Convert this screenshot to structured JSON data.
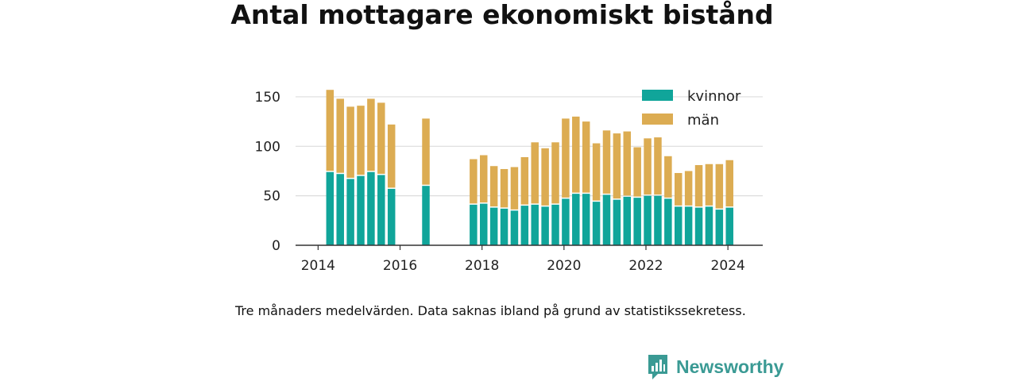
{
  "title": "Antal mottagare ekonomiskt bistånd",
  "caption": "Tre månaders medelvärden. Data saknas ibland på grund av statistikssekretess.",
  "brand": {
    "name": "Newsworthy",
    "color": "#3a9a94",
    "icon": "newsworthy-logo-icon"
  },
  "colors": {
    "kvinnor": "#10a59a",
    "man": "#dcac52",
    "grid": "#dddddd",
    "axis": "#333333"
  },
  "chart_data": {
    "type": "bar",
    "stacked": true,
    "xlabel": "",
    "ylabel": "",
    "xlim": [
      2013.45,
      2024.85
    ],
    "ylim": [
      0,
      170
    ],
    "x_ticks": [
      2014,
      2016,
      2018,
      2020,
      2022,
      2024
    ],
    "y_ticks": [
      0,
      50,
      100,
      150
    ],
    "grid": true,
    "legend": {
      "position": "top-right",
      "entries": [
        "kvinnor",
        "män"
      ]
    },
    "x": [
      2014.29,
      2014.54,
      2014.79,
      2015.04,
      2015.29,
      2015.54,
      2015.79,
      2016.63,
      2017.79,
      2018.04,
      2018.29,
      2018.54,
      2018.79,
      2019.04,
      2019.29,
      2019.54,
      2019.79,
      2020.04,
      2020.29,
      2020.54,
      2020.79,
      2021.04,
      2021.29,
      2021.54,
      2021.79,
      2022.04,
      2022.29,
      2022.54,
      2022.79,
      2023.04,
      2023.29,
      2023.54,
      2023.79,
      2024.04
    ],
    "series": [
      {
        "name": "kvinnor",
        "color": "#10a59a",
        "values": [
          74,
          72,
          67,
          70,
          74,
          71,
          57,
          60,
          41,
          42,
          38,
          37,
          35,
          40,
          41,
          39,
          41,
          47,
          52,
          52,
          44,
          51,
          46,
          49,
          48,
          50,
          50,
          47,
          39,
          39,
          38,
          39,
          36,
          38
        ]
      },
      {
        "name": "män",
        "color": "#dcac52",
        "values": [
          83,
          76,
          73,
          71,
          74,
          73,
          65,
          68,
          46,
          49,
          42,
          40,
          44,
          49,
          63,
          59,
          63,
          81,
          78,
          73,
          59,
          65,
          67,
          66,
          51,
          58,
          59,
          43,
          34,
          36,
          43,
          43,
          46,
          48
        ]
      }
    ]
  }
}
